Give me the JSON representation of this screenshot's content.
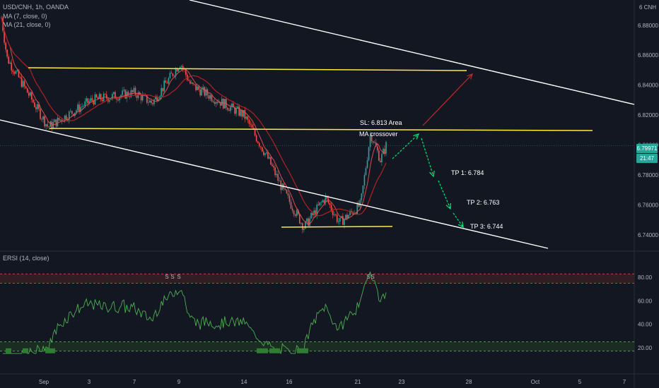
{
  "header": {
    "symbol": "USD/CNH, 1h, OANDA",
    "ma1": "MA (7, close, 0)",
    "ma2": "MA (21, close, 0)",
    "rsi": "ERSI (14, close)"
  },
  "price_axis": {
    "currency": "6 CNH",
    "ticks": [
      "6.88000",
      "6.86000",
      "6.84000",
      "6.82000",
      "6.80000",
      "6.78000",
      "6.76000",
      "6.74000"
    ],
    "last_price": "6.79971",
    "countdown": "21:47"
  },
  "rsi_axis": {
    "ticks": [
      "80.00",
      "60.00",
      "40.00",
      "20.00"
    ]
  },
  "time_axis": {
    "ticks": [
      "Sep",
      "3",
      "7",
      "9",
      "14",
      "16",
      "21",
      "23",
      "28",
      "Oct",
      "5",
      "7"
    ]
  },
  "annotations": {
    "sl": "SL: 6.813 Area",
    "ma_cross": "MA crossover",
    "tp1": "TP 1: 6.784",
    "tp2": "TP 2: 6.763",
    "tp3": "TP 3: 6.744"
  },
  "colors": {
    "background": "#131722",
    "up": "#26a69a",
    "down": "#ef5350",
    "ma_fast": "#ef5350",
    "ma_slow": "#b22222",
    "horizontal_level": "#ffeb3b",
    "channel": "#ffffff",
    "arrow_green": "#00e676",
    "arrow_red": "#c62828",
    "rsi_line": "#4caf50",
    "last_price_bg": "#26a69a"
  },
  "chart_data": {
    "type": "candlestick",
    "title": "USD/CNH, 1h, OANDA",
    "y_range": [
      6.73,
      6.895
    ],
    "approx_close_path": [
      {
        "x": "Sep 1",
        "y": 6.885
      },
      {
        "x": "Sep 1",
        "y": 6.858
      },
      {
        "x": "Sep 2",
        "y": 6.812
      },
      {
        "x": "Sep 3",
        "y": 6.83
      },
      {
        "x": "Sep 7",
        "y": 6.835
      },
      {
        "x": "Sep 7",
        "y": 6.828
      },
      {
        "x": "Sep 9",
        "y": 6.855
      },
      {
        "x": "Sep 9",
        "y": 6.84
      },
      {
        "x": "Sep 14",
        "y": 6.82
      },
      {
        "x": "Sep 14",
        "y": 6.79
      },
      {
        "x": "Sep 15",
        "y": 6.77
      },
      {
        "x": "Sep 16",
        "y": 6.745
      },
      {
        "x": "Sep 17",
        "y": 6.765
      },
      {
        "x": "Sep 18",
        "y": 6.748
      },
      {
        "x": "Sep 21",
        "y": 6.76
      },
      {
        "x": "Sep 21",
        "y": 6.808
      },
      {
        "x": "Sep 22",
        "y": 6.79
      },
      {
        "x": "Sep 22",
        "y": 6.7997
      }
    ],
    "levels": [
      {
        "name": "resistance",
        "y": 6.855
      },
      {
        "name": "SL level",
        "y": 6.813
      },
      {
        "name": "support",
        "y": 6.744
      }
    ],
    "targets": [
      {
        "label": "SL: 6.813 Area",
        "y": 6.813
      },
      {
        "label": "TP 1: 6.784",
        "y": 6.784
      },
      {
        "label": "TP 2: 6.763",
        "y": 6.763
      },
      {
        "label": "TP 3: 6.744",
        "y": 6.744
      }
    ],
    "rsi": {
      "name": "ERSI (14, close)",
      "y_range": [
        0,
        100
      ],
      "levels": [
        83,
        75,
        25,
        17
      ],
      "last_value": 63
    },
    "grid": false
  }
}
